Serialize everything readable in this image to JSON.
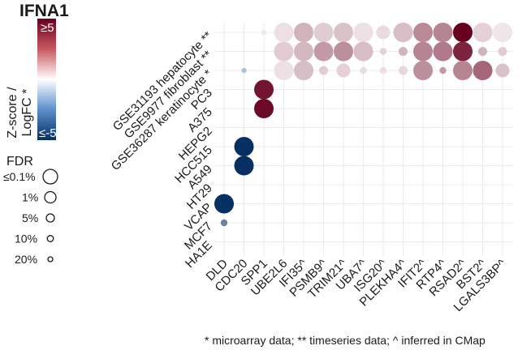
{
  "chart_data": {
    "type": "scatter",
    "title": "IFNA1",
    "color_legend": {
      "title_line1": "Z-score /",
      "title_line2": "LogFC *",
      "top_label": "≥5",
      "bottom_label": "≤-5",
      "range": [
        -5,
        5
      ],
      "low_color": "#053061",
      "mid_color": "#ffffff",
      "high_color": "#67001f"
    },
    "size_legend": {
      "title": "FDR",
      "entries": [
        {
          "label": "≤0.1%",
          "level": 5
        },
        {
          "label": "1%",
          "level": 4
        },
        {
          "label": "5%",
          "level": 3
        },
        {
          "label": "10%",
          "level": 2
        },
        {
          "label": "20%",
          "level": 1
        }
      ]
    },
    "y_categories": [
      "GSE31193 hepatocyte **",
      "GSE9977 fibroblast **",
      "GSE36287 keratinocyte *",
      "PC3",
      "A375",
      "HEPG2",
      "HCC515",
      "A549",
      "HT29",
      "VCAP",
      "MCF7",
      "HA1E"
    ],
    "x_categories": [
      "DLD",
      "CDC20",
      "SPP1",
      "UBE2L6",
      "IFI35^",
      "PSMB9^",
      "TRIM21^",
      "UBA7^",
      "ISG20^",
      "PLEKHA4^",
      "IFIT2^",
      "RTP4^",
      "RSAD2^",
      "BST2^",
      "LGALS3BP^"
    ],
    "points": [
      {
        "x": "SPP1",
        "y": "GSE31193 hepatocyte **",
        "value": 0.5,
        "fdr_level": 1
      },
      {
        "x": "UBE2L6",
        "y": "GSE31193 hepatocyte **",
        "value": 0.6,
        "fdr_level": 5
      },
      {
        "x": "IFI35^",
        "y": "GSE31193 hepatocyte **",
        "value": 1.5,
        "fdr_level": 5
      },
      {
        "x": "PSMB9^",
        "y": "GSE31193 hepatocyte **",
        "value": 1.0,
        "fdr_level": 5
      },
      {
        "x": "TRIM21^",
        "y": "GSE31193 hepatocyte **",
        "value": 1.2,
        "fdr_level": 5
      },
      {
        "x": "UBA7^",
        "y": "GSE31193 hepatocyte **",
        "value": 0.6,
        "fdr_level": 5
      },
      {
        "x": "ISG20^",
        "y": "GSE31193 hepatocyte **",
        "value": 0.7,
        "fdr_level": 4
      },
      {
        "x": "PLEKHA4^",
        "y": "GSE31193 hepatocyte **",
        "value": 1.3,
        "fdr_level": 5
      },
      {
        "x": "IFIT2^",
        "y": "GSE31193 hepatocyte **",
        "value": 2.3,
        "fdr_level": 5
      },
      {
        "x": "RTP4^",
        "y": "GSE31193 hepatocyte **",
        "value": 2.4,
        "fdr_level": 5
      },
      {
        "x": "RSAD2^",
        "y": "GSE31193 hepatocyte **",
        "value": 5.0,
        "fdr_level": 5
      },
      {
        "x": "BST2^",
        "y": "GSE31193 hepatocyte **",
        "value": 0.9,
        "fdr_level": 5
      },
      {
        "x": "LGALS3BP^",
        "y": "GSE31193 hepatocyte **",
        "value": 0.5,
        "fdr_level": 5
      },
      {
        "x": "UBE2L6",
        "y": "GSE9977 fibroblast **",
        "value": 1.0,
        "fdr_level": 5
      },
      {
        "x": "IFI35^",
        "y": "GSE9977 fibroblast **",
        "value": 1.4,
        "fdr_level": 5
      },
      {
        "x": "PSMB9^",
        "y": "GSE9977 fibroblast **",
        "value": 2.0,
        "fdr_level": 5
      },
      {
        "x": "TRIM21^",
        "y": "GSE9977 fibroblast **",
        "value": 2.2,
        "fdr_level": 5
      },
      {
        "x": "UBA7^",
        "y": "GSE9977 fibroblast **",
        "value": 1.3,
        "fdr_level": 5
      },
      {
        "x": "ISG20^",
        "y": "GSE9977 fibroblast **",
        "value": 0.9,
        "fdr_level": 2
      },
      {
        "x": "PLEKHA4^",
        "y": "GSE9977 fibroblast **",
        "value": 1.5,
        "fdr_level": 3
      },
      {
        "x": "IFIT2^",
        "y": "GSE9977 fibroblast **",
        "value": 2.4,
        "fdr_level": 5
      },
      {
        "x": "RTP4^",
        "y": "GSE9977 fibroblast **",
        "value": 2.6,
        "fdr_level": 5
      },
      {
        "x": "RSAD2^",
        "y": "GSE9977 fibroblast **",
        "value": 4.3,
        "fdr_level": 5
      },
      {
        "x": "BST2^",
        "y": "GSE9977 fibroblast **",
        "value": 1.5,
        "fdr_level": 3
      },
      {
        "x": "LGALS3BP^",
        "y": "GSE9977 fibroblast **",
        "value": 1.0,
        "fdr_level": 3
      },
      {
        "x": "CDC20",
        "y": "GSE36287 keratinocyte *",
        "value": -1.5,
        "fdr_level": 1
      },
      {
        "x": "UBE2L6",
        "y": "GSE36287 keratinocyte *",
        "value": 0.6,
        "fdr_level": 5
      },
      {
        "x": "IFI35^",
        "y": "GSE36287 keratinocyte *",
        "value": 1.3,
        "fdr_level": 5
      },
      {
        "x": "PSMB9^",
        "y": "GSE36287 keratinocyte *",
        "value": 1.0,
        "fdr_level": 3
      },
      {
        "x": "TRIM21^",
        "y": "GSE36287 keratinocyte *",
        "value": 0.9,
        "fdr_level": 4
      },
      {
        "x": "UBA7^",
        "y": "GSE36287 keratinocyte *",
        "value": 0.7,
        "fdr_level": 2
      },
      {
        "x": "ISG20^",
        "y": "GSE36287 keratinocyte *",
        "value": 0.6,
        "fdr_level": 2
      },
      {
        "x": "PLEKHA4^",
        "y": "GSE36287 keratinocyte *",
        "value": 0.8,
        "fdr_level": 3
      },
      {
        "x": "IFIT2^",
        "y": "GSE36287 keratinocyte *",
        "value": 2.2,
        "fdr_level": 5
      },
      {
        "x": "RTP4^",
        "y": "GSE36287 keratinocyte *",
        "value": 2.0,
        "fdr_level": 2
      },
      {
        "x": "RSAD2^",
        "y": "GSE36287 keratinocyte *",
        "value": 2.4,
        "fdr_level": 5
      },
      {
        "x": "BST2^",
        "y": "GSE36287 keratinocyte *",
        "value": 3.0,
        "fdr_level": 5
      },
      {
        "x": "LGALS3BP^",
        "y": "GSE36287 keratinocyte *",
        "value": 1.2,
        "fdr_level": 4
      },
      {
        "x": "SPP1",
        "y": "PC3",
        "value": 4.6,
        "fdr_level": 5
      },
      {
        "x": "SPP1",
        "y": "A375",
        "value": 4.8,
        "fdr_level": 5
      },
      {
        "x": "CDC20",
        "y": "HCC515",
        "value": -5.0,
        "fdr_level": 5
      },
      {
        "x": "CDC20",
        "y": "A549",
        "value": -5.0,
        "fdr_level": 5
      },
      {
        "x": "DLD",
        "y": "VCAP",
        "value": -5.0,
        "fdr_level": 5
      },
      {
        "x": "DLD",
        "y": "MCF7",
        "value": -3.0,
        "fdr_level": 2
      }
    ],
    "footnote": "* microarray data; ** timeseries data; ^ inferred in CMap",
    "grid": true
  }
}
